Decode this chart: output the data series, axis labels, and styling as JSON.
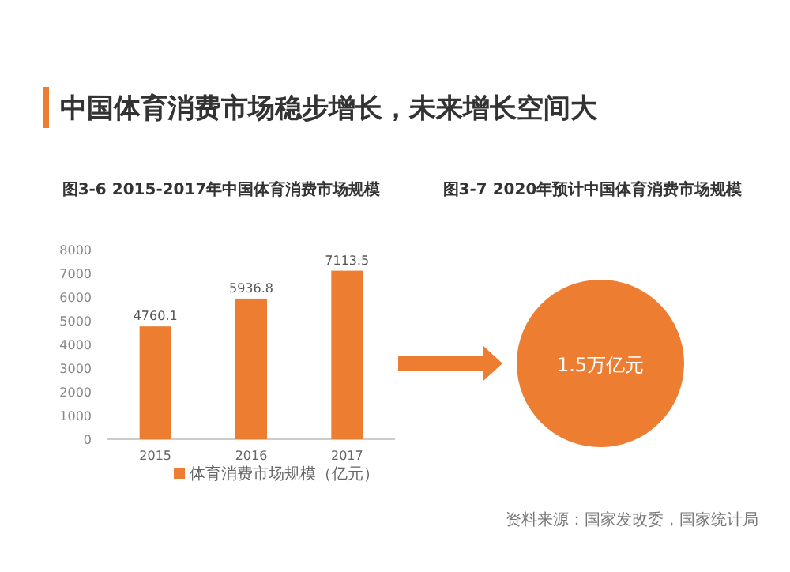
{
  "chart_data": [
    {
      "type": "bar",
      "title": "图3-6 2015-2017年中国体育消费市场规模",
      "annotations": [
        "中国体育消费市场稳步增长，未来增长空间大"
      ],
      "categories": [
        "2015",
        "2016",
        "2017"
      ],
      "series": [
        {
          "name": "体育消费市场规模（亿元）",
          "color": "#ed7d31",
          "values": [
            4760.1,
            5936.8,
            7113.5
          ]
        }
      ],
      "ylim": [
        0,
        8000
      ],
      "yticks": [
        0,
        1000,
        2000,
        3000,
        4000,
        5000,
        6000,
        7000,
        8000
      ],
      "data_labels": true,
      "legend": "bottom",
      "grid": false
    },
    {
      "type": "other",
      "title": "图3-7 2020年预计中国体育消费市场规模",
      "annotations": [
        "1.5万亿元",
        "资料来源：国家发改委，国家统计局"
      ]
    }
  ]
}
